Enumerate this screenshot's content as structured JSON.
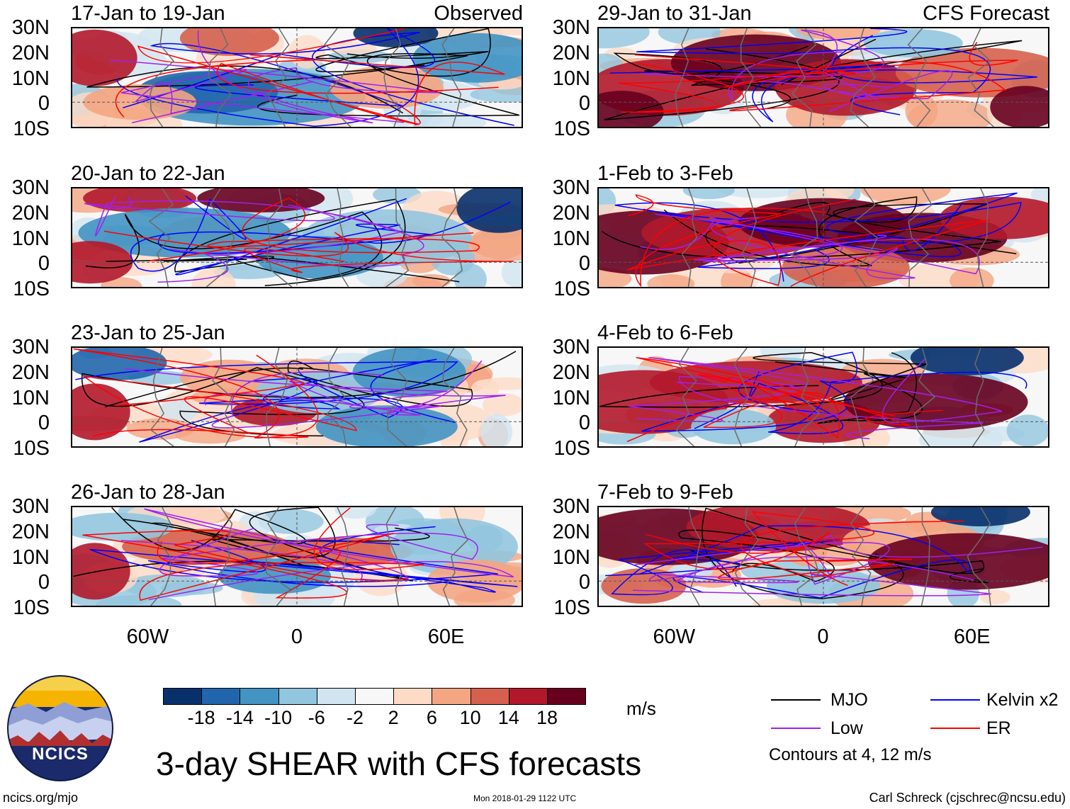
{
  "panels": [
    {
      "title": "17-Jan to 19-Jan",
      "label": "Observed",
      "kind": "obs1"
    },
    {
      "title": "20-Jan to 22-Jan",
      "label": "",
      "kind": "obs2"
    },
    {
      "title": "23-Jan to 25-Jan",
      "label": "",
      "kind": "obs3"
    },
    {
      "title": "26-Jan to 28-Jan",
      "label": "",
      "kind": "obs4"
    },
    {
      "title": "29-Jan to 31-Jan",
      "label": "CFS Forecast",
      "kind": "fc1"
    },
    {
      "title": "1-Feb to 3-Feb",
      "label": "",
      "kind": "fc2"
    },
    {
      "title": "4-Feb to 6-Feb",
      "label": "",
      "kind": "fc3"
    },
    {
      "title": "7-Feb to 9-Feb",
      "label": "",
      "kind": "fc4"
    }
  ],
  "lat_ticks": [
    "30N",
    "20N",
    "10N",
    "0",
    "10S"
  ],
  "lon_ticks": [
    "60W",
    "0",
    "60E"
  ],
  "colorbar": {
    "colors": [
      "#08306b",
      "#2166ac",
      "#4393c3",
      "#92c5de",
      "#d1e5f0",
      "#f7f7f7",
      "#fddbc7",
      "#f4a582",
      "#d6604d",
      "#b2182b",
      "#67001f"
    ],
    "ticks": [
      "-18",
      "-14",
      "-10",
      "-6",
      "-2",
      "2",
      "6",
      "10",
      "14",
      "18"
    ],
    "units": "m/s"
  },
  "legend": [
    {
      "label": "MJO",
      "color": "#000000"
    },
    {
      "label": "Kelvin x2",
      "color": "#0000ff"
    },
    {
      "label": "Low",
      "color": "#a020f0"
    },
    {
      "label": "ER",
      "color": "#ff0000"
    }
  ],
  "contours_note": "Contours at 4, 12 m/s",
  "title": "3-day SHEAR with CFS forecasts",
  "logo_text": "NCICS",
  "footer": {
    "left": "ncics.org/mjo",
    "center": "Mon 2018-01-29 1122 UTC",
    "right": "Carl Schreck (cjschrec@ncsu.edu)"
  }
}
